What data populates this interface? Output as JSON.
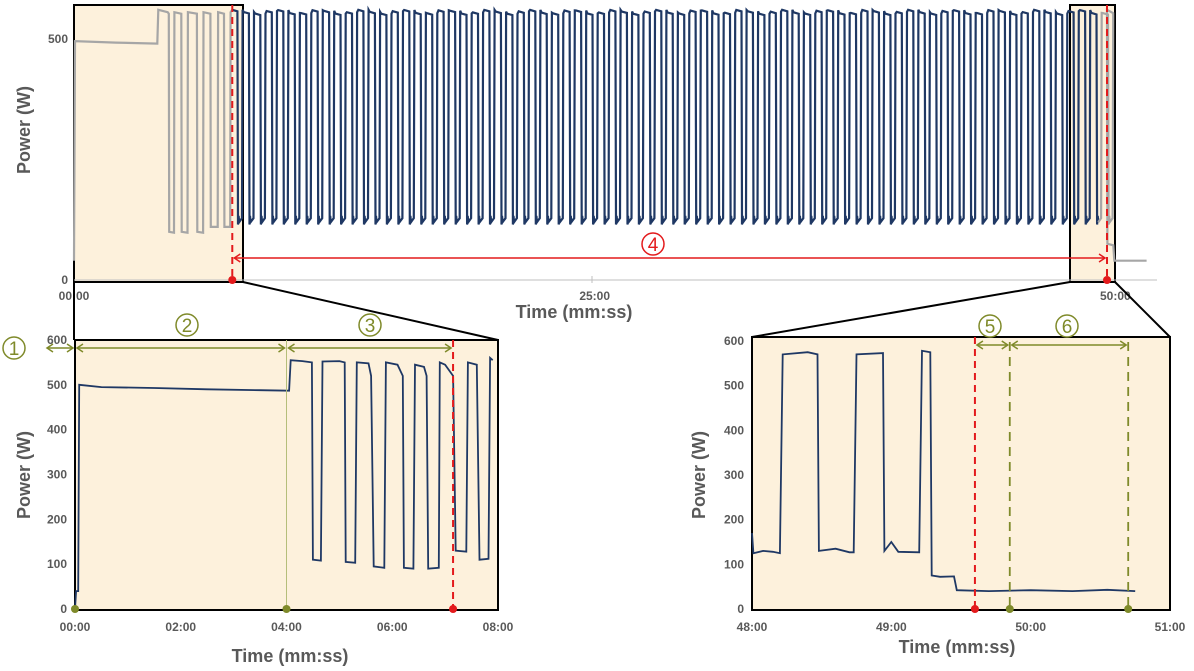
{
  "colors": {
    "series": "#1f3864",
    "context": "#a6a6a6",
    "highlight": "#fdf1dc",
    "phase_red": "#e31a1c",
    "phase_green": "#7f8a2a",
    "text": "#595959"
  },
  "chart_data": [
    {
      "type": "line",
      "panel": "top",
      "xlabel": "Time (mm:ss)",
      "ylabel": "Power (W)",
      "x_unit": "minutes",
      "xlim": [
        0,
        52
      ],
      "ylim": [
        0,
        570
      ],
      "yticks": [
        "0",
        "500"
      ],
      "xticks": [
        {
          "label": "00:00",
          "value": 0
        },
        {
          "label": "25:00",
          "value": 25
        },
        {
          "label": "50:00",
          "value": 50
        }
      ],
      "shaded_ranges": [
        [
          0,
          7.8
        ],
        [
          49.3,
          52
        ]
      ],
      "idle_level": 490,
      "high_level": 560,
      "low_level": 125,
      "tail_level": 40,
      "cycle_period_min": 0.55,
      "red_markers": [
        7.6,
        49.6
      ],
      "annotation": {
        "label": "4",
        "from": 7.6,
        "to": 49.6
      }
    },
    {
      "type": "line",
      "panel": "bottom-left",
      "xlabel": "Time (mm:ss)",
      "ylabel": "Power (W)",
      "x_unit": "minutes",
      "xlim": [
        0,
        8
      ],
      "ylim": [
        0,
        600
      ],
      "yticks": [
        "0",
        "100",
        "200",
        "300",
        "400",
        "500",
        "600"
      ],
      "xticks": [
        {
          "label": "00:00",
          "value": 0
        },
        {
          "label": "02:00",
          "value": 2
        },
        {
          "label": "04:00",
          "value": 4
        },
        {
          "label": "06:00",
          "value": 6
        },
        {
          "label": "08:00",
          "value": 8
        }
      ],
      "points": [
        [
          0,
          0
        ],
        [
          0.02,
          40
        ],
        [
          0.06,
          40
        ],
        [
          0.08,
          500
        ],
        [
          0.5,
          495
        ],
        [
          1.5,
          493
        ],
        [
          2.5,
          490
        ],
        [
          3.5,
          488
        ],
        [
          4.05,
          487
        ],
        [
          4.08,
          555
        ],
        [
          4.3,
          553
        ],
        [
          4.48,
          550
        ],
        [
          4.5,
          110
        ],
        [
          4.65,
          108
        ],
        [
          4.68,
          552
        ],
        [
          5.0,
          553
        ],
        [
          5.1,
          550
        ],
        [
          5.12,
          105
        ],
        [
          5.3,
          103
        ],
        [
          5.33,
          550
        ],
        [
          5.55,
          548
        ],
        [
          5.6,
          520
        ],
        [
          5.65,
          95
        ],
        [
          5.85,
          92
        ],
        [
          5.88,
          550
        ],
        [
          6.1,
          545
        ],
        [
          6.2,
          520
        ],
        [
          6.22,
          92
        ],
        [
          6.4,
          90
        ],
        [
          6.43,
          545
        ],
        [
          6.6,
          540
        ],
        [
          6.65,
          520
        ],
        [
          6.68,
          90
        ],
        [
          6.88,
          92
        ],
        [
          6.9,
          550
        ],
        [
          7.0,
          545
        ],
        [
          7.15,
          520
        ],
        [
          7.2,
          130
        ],
        [
          7.4,
          128
        ],
        [
          7.43,
          550
        ],
        [
          7.6,
          545
        ],
        [
          7.65,
          110
        ],
        [
          7.82,
          112
        ],
        [
          7.85,
          560
        ],
        [
          7.9,
          555
        ]
      ],
      "red_marker": 7.15,
      "phase_markers": [
        0,
        4.0
      ],
      "annotations": [
        {
          "label": "1",
          "from": 0,
          "to": 0
        },
        {
          "label": "2",
          "from": 0,
          "to": 4.0
        },
        {
          "label": "3",
          "from": 4.0,
          "to": 7.15
        }
      ]
    },
    {
      "type": "line",
      "panel": "bottom-right",
      "xlabel": "Time (mm:ss)",
      "ylabel": "Power (W)",
      "x_unit": "minutes",
      "xlim": [
        48,
        51
      ],
      "ylim": [
        0,
        600
      ],
      "yticks": [
        "0",
        "100",
        "200",
        "300",
        "400",
        "500",
        "600"
      ],
      "xticks": [
        {
          "label": "48:00",
          "value": 48
        },
        {
          "label": "49:00",
          "value": 49
        },
        {
          "label": "50:00",
          "value": 50
        },
        {
          "label": "51:00",
          "value": 51
        }
      ],
      "points": [
        [
          48.0,
          170
        ],
        [
          48.01,
          125
        ],
        [
          48.08,
          130
        ],
        [
          48.15,
          128
        ],
        [
          48.2,
          125
        ],
        [
          48.22,
          570
        ],
        [
          48.4,
          575
        ],
        [
          48.47,
          570
        ],
        [
          48.48,
          130
        ],
        [
          48.6,
          135
        ],
        [
          48.7,
          127
        ],
        [
          48.73,
          127
        ],
        [
          48.75,
          570
        ],
        [
          48.94,
          573
        ],
        [
          48.95,
          130
        ],
        [
          49.0,
          150
        ],
        [
          49.05,
          128
        ],
        [
          49.2,
          127
        ],
        [
          49.22,
          578
        ],
        [
          49.28,
          575
        ],
        [
          49.29,
          75
        ],
        [
          49.35,
          72
        ],
        [
          49.45,
          73
        ],
        [
          49.47,
          42
        ],
        [
          49.7,
          40
        ],
        [
          50.0,
          42
        ],
        [
          50.3,
          40
        ],
        [
          50.55,
          43
        ],
        [
          50.75,
          40
        ]
      ],
      "red_marker": 49.6,
      "phase_markers": [
        49.85,
        50.7
      ],
      "annotations": [
        {
          "label": "5",
          "from": 49.6,
          "to": 49.85
        },
        {
          "label": "6",
          "from": 49.85,
          "to": 50.7
        }
      ]
    }
  ]
}
